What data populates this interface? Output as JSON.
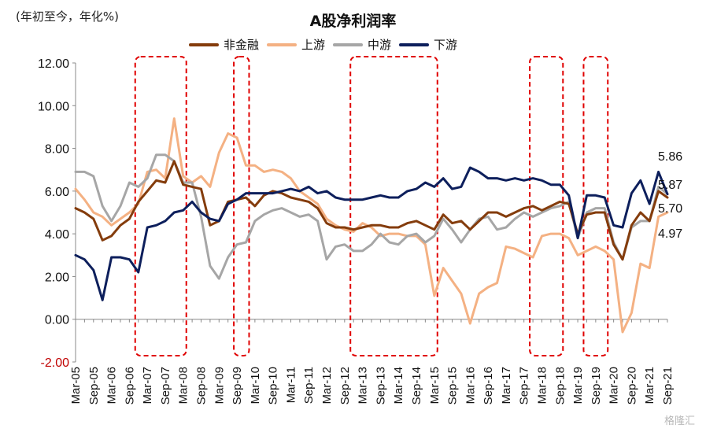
{
  "unit_label": "(年初至今，年化%)",
  "chart_data": {
    "type": "line",
    "title": "A股净利润率",
    "ylim": [
      -2,
      12
    ],
    "yticks": [
      "-2.00",
      "0.00",
      "2.00",
      "4.00",
      "6.00",
      "8.00",
      "10.00",
      "12.00"
    ],
    "x": [
      "Mar-05",
      "Jun-05",
      "Sep-05",
      "Dec-05",
      "Mar-06",
      "Jun-06",
      "Sep-06",
      "Dec-06",
      "Mar-07",
      "Jun-07",
      "Sep-07",
      "Dec-07",
      "Mar-08",
      "Jun-08",
      "Sep-08",
      "Dec-08",
      "Mar-09",
      "Jun-09",
      "Sep-09",
      "Dec-09",
      "Mar-10",
      "Jun-10",
      "Sep-10",
      "Dec-10",
      "Mar-11",
      "Jun-11",
      "Sep-11",
      "Dec-11",
      "Mar-12",
      "Jun-12",
      "Sep-12",
      "Dec-12",
      "Mar-13",
      "Jun-13",
      "Sep-13",
      "Dec-13",
      "Mar-14",
      "Jun-14",
      "Sep-14",
      "Dec-14",
      "Mar-15",
      "Jun-15",
      "Sep-15",
      "Dec-15",
      "Mar-16",
      "Jun-16",
      "Sep-16",
      "Dec-16",
      "Mar-17",
      "Jun-17",
      "Sep-17",
      "Dec-17",
      "Mar-18",
      "Jun-18",
      "Sep-18",
      "Dec-18",
      "Mar-19",
      "Jun-19",
      "Sep-19",
      "Dec-19",
      "Mar-20",
      "Jun-20",
      "Sep-20",
      "Dec-20",
      "Mar-21",
      "Jun-21",
      "Sep-21"
    ],
    "xtick_labels": [
      "Mar-05",
      "Sep-05",
      "Mar-06",
      "Sep-06",
      "Mar-07",
      "Sep-07",
      "Mar-08",
      "Sep-08",
      "Mar-09",
      "Sep-09",
      "Mar-10",
      "Sep-10",
      "Mar-11",
      "Sep-11",
      "Mar-12",
      "Sep-12",
      "Mar-13",
      "Sep-13",
      "Mar-14",
      "Sep-14",
      "Mar-15",
      "Sep-15",
      "Mar-16",
      "Sep-16",
      "Mar-17",
      "Sep-17",
      "Mar-18",
      "Sep-18",
      "Mar-19",
      "Sep-19",
      "Mar-20",
      "Sep-20",
      "Mar-21",
      "Sep-21"
    ],
    "series": [
      {
        "name": "非金融",
        "color": "#843c0c",
        "values": [
          5.2,
          5.0,
          4.7,
          3.7,
          3.9,
          4.4,
          4.7,
          5.5,
          6.0,
          6.5,
          6.4,
          7.4,
          6.3,
          6.2,
          6.1,
          4.4,
          4.6,
          5.5,
          5.6,
          5.7,
          5.3,
          5.8,
          6.0,
          5.9,
          5.7,
          5.6,
          5.5,
          5.2,
          4.5,
          4.3,
          4.3,
          4.2,
          4.3,
          4.4,
          4.4,
          4.3,
          4.3,
          4.5,
          4.6,
          4.4,
          4.2,
          4.9,
          4.5,
          4.6,
          4.2,
          4.6,
          5.0,
          5.0,
          4.8,
          5.0,
          5.2,
          5.3,
          5.1,
          5.3,
          5.5,
          5.4,
          4.0,
          4.9,
          5.0,
          5.0,
          3.5,
          2.8,
          4.4,
          5.0,
          4.6,
          6.0,
          5.7
        ]
      },
      {
        "name": "上游",
        "color": "#f4b183",
        "values": [
          6.1,
          5.6,
          5.0,
          4.8,
          4.4,
          4.7,
          5.0,
          5.4,
          6.9,
          7.0,
          6.6,
          9.4,
          6.7,
          6.4,
          6.7,
          6.2,
          7.8,
          8.7,
          8.5,
          7.2,
          7.2,
          6.9,
          7.0,
          6.9,
          6.6,
          6.0,
          5.7,
          5.4,
          4.7,
          4.4,
          4.2,
          4.1,
          4.5,
          4.3,
          3.9,
          4.0,
          4.0,
          3.9,
          3.9,
          3.5,
          1.1,
          2.4,
          1.8,
          1.2,
          -0.2,
          1.2,
          1.5,
          1.7,
          3.4,
          3.3,
          3.1,
          2.9,
          3.9,
          4.0,
          4.0,
          3.8,
          3.0,
          3.2,
          3.4,
          3.2,
          2.8,
          -0.6,
          0.3,
          2.6,
          2.4,
          4.8,
          5.0
        ]
      },
      {
        "name": "中游",
        "color": "#a6a6a6",
        "values": [
          6.9,
          6.9,
          6.7,
          5.3,
          4.6,
          5.3,
          6.4,
          6.2,
          6.6,
          7.7,
          7.7,
          7.4,
          6.4,
          6.4,
          4.8,
          2.5,
          1.9,
          2.9,
          3.5,
          3.6,
          4.6,
          4.9,
          5.1,
          5.2,
          5.0,
          4.8,
          4.9,
          4.6,
          2.8,
          3.4,
          3.5,
          3.2,
          3.2,
          3.5,
          4.0,
          3.6,
          3.5,
          3.9,
          4.0,
          3.6,
          3.9,
          4.7,
          4.2,
          3.6,
          4.2,
          4.7,
          4.8,
          4.2,
          4.3,
          4.7,
          5.0,
          4.8,
          5.0,
          5.2,
          5.3,
          5.5,
          3.8,
          5.0,
          5.2,
          5.2,
          3.6,
          2.8,
          4.3,
          4.6,
          4.6,
          6.2,
          5.87
        ]
      },
      {
        "name": "下游",
        "color": "#0d1f5c",
        "values": [
          3.0,
          2.8,
          2.3,
          0.9,
          2.9,
          2.9,
          2.8,
          2.2,
          4.3,
          4.4,
          4.6,
          5.0,
          5.1,
          5.5,
          5.0,
          4.7,
          4.6,
          5.4,
          5.6,
          5.9,
          5.9,
          5.9,
          5.9,
          6.0,
          6.1,
          6.0,
          6.2,
          5.9,
          6.0,
          5.7,
          5.6,
          5.6,
          5.6,
          5.7,
          5.8,
          5.7,
          5.7,
          6.0,
          6.1,
          6.4,
          6.2,
          6.6,
          6.1,
          6.2,
          7.1,
          6.9,
          6.6,
          6.6,
          6.5,
          6.6,
          6.5,
          6.6,
          6.5,
          6.3,
          6.3,
          5.8,
          3.8,
          5.8,
          5.8,
          5.7,
          4.4,
          4.3,
          5.9,
          6.5,
          5.4,
          6.9,
          5.86
        ]
      }
    ],
    "end_labels": [
      "5.86",
      "5.87",
      "5.70",
      "4.97"
    ],
    "highlight_periods": [
      [
        "Dec-06",
        "Mar-08"
      ],
      [
        "Sep-09",
        "Dec-09"
      ],
      [
        "Dec-12",
        "Mar-15"
      ],
      [
        "Dec-17",
        "Sep-18"
      ],
      [
        "Jun-19",
        "Dec-19"
      ]
    ]
  },
  "watermark": "格隆汇"
}
